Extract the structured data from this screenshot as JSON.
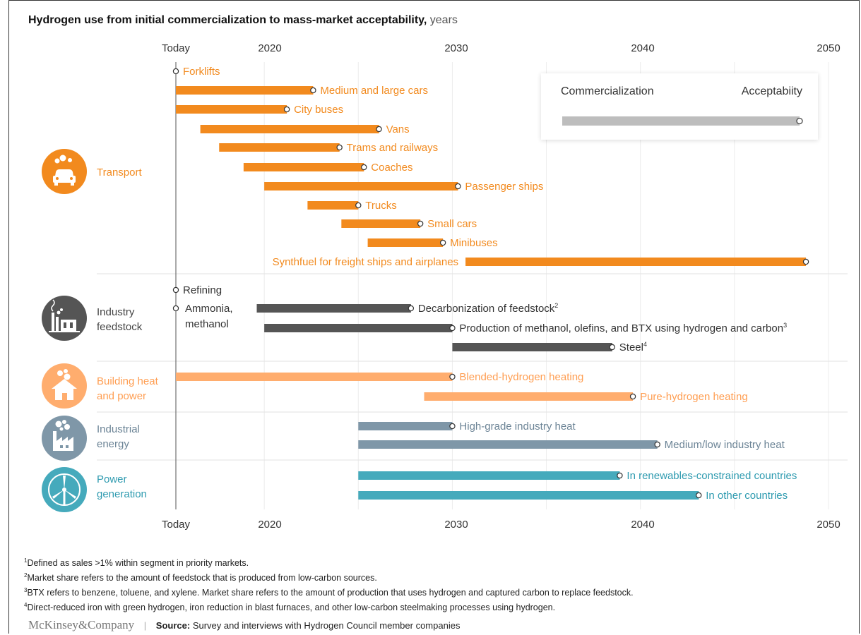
{
  "title": {
    "main": "Hydrogen use from initial commercialization to mass-market acceptability,",
    "unit": "years"
  },
  "axis": {
    "today_label": "Today",
    "ticks": [
      "2020",
      "2030",
      "2040",
      "2050"
    ]
  },
  "legend": {
    "start": "Commercialization",
    "end": "Acceptabiity"
  },
  "categories": [
    {
      "name": "Transport",
      "lines": [
        "Transport"
      ],
      "color": "#f28a1e",
      "icon": "car-icon"
    },
    {
      "name": "Industry feedstock",
      "lines": [
        "Industry",
        "feedstock"
      ],
      "color": "#555555",
      "icon": "factory-icon"
    },
    {
      "name": "Building heat and power",
      "lines": [
        "Building heat",
        "and power"
      ],
      "color": "#ffad6e",
      "icon": "house-icon"
    },
    {
      "name": "Industrial energy",
      "lines": [
        "Industrial",
        "energy"
      ],
      "color": "#7f97a8",
      "icon": "industry-icon"
    },
    {
      "name": "Power generation",
      "lines": [
        "Power",
        "generation"
      ],
      "color": "#45aabc",
      "icon": "wind-turbine-icon"
    }
  ],
  "chart_data": {
    "type": "bar",
    "subtype": "horizontal-range",
    "x_unit": "year",
    "xlim": [
      2015.3,
      2050
    ],
    "today": 2015.3,
    "series": [
      {
        "label": "Forklifts",
        "category": "Transport",
        "start": 2015.3,
        "end": 2015.3
      },
      {
        "label": "Medium and large cars",
        "category": "Transport",
        "start": 2015.3,
        "end": 2022.6
      },
      {
        "label": "City buses",
        "category": "Transport",
        "start": 2015.3,
        "end": 2021.2
      },
      {
        "label": "Vans",
        "category": "Transport",
        "start": 2016.6,
        "end": 2026.1
      },
      {
        "label": "Trams and railways",
        "category": "Transport",
        "start": 2017.6,
        "end": 2024.0
      },
      {
        "label": "Coaches",
        "category": "Transport",
        "start": 2018.9,
        "end": 2025.3
      },
      {
        "label": "Passenger ships",
        "category": "Transport",
        "start": 2020.0,
        "end": 2030.3
      },
      {
        "label": "Trucks",
        "category": "Transport",
        "start": 2022.3,
        "end": 2025.0
      },
      {
        "label": "Small cars",
        "category": "Transport",
        "start": 2024.1,
        "end": 2028.3
      },
      {
        "label": "Minibuses",
        "category": "Transport",
        "start": 2025.5,
        "end": 2029.5
      },
      {
        "label": "Synthfuel for freight ships and airplanes",
        "category": "Transport",
        "start": 2030.7,
        "end": 2048.8
      },
      {
        "label": "Refining",
        "category": "Industry feedstock",
        "start": 2015.3,
        "end": 2015.3
      },
      {
        "label": "Ammonia, methanol",
        "category": "Industry feedstock",
        "start": 2015.3,
        "end": 2015.3
      },
      {
        "label": "Decarbonization of feedstock",
        "note": "2",
        "category": "Industry feedstock",
        "start": 2019.6,
        "end": 2027.8
      },
      {
        "label": "Production of methanol, olefins, and BTX using hydrogen and carbon",
        "note": "3",
        "category": "Industry feedstock",
        "start": 2020.0,
        "end": 2030.0
      },
      {
        "label": "Steel",
        "note": "4",
        "category": "Industry feedstock",
        "start": 2030.0,
        "end": 2038.5
      },
      {
        "label": "Blended-hydrogen heating",
        "category": "Building heat and power",
        "start": 2015.3,
        "end": 2030.0
      },
      {
        "label": "Pure-hydrogen heating",
        "category": "Building heat and power",
        "start": 2028.5,
        "end": 2039.6
      },
      {
        "label": "High-grade industry heat",
        "category": "Industrial energy",
        "start": 2025.0,
        "end": 2030.0
      },
      {
        "label": "Medium/low industry heat",
        "category": "Industrial energy",
        "start": 2025.0,
        "end": 2040.9
      },
      {
        "label": "In renewables-constrained countries",
        "category": "Power generation",
        "start": 2025.0,
        "end": 2038.9
      },
      {
        "label": "In other countries",
        "category": "Power generation",
        "start": 2025.0,
        "end": 2043.1
      }
    ]
  },
  "footnotes": [
    {
      "num": "1",
      "text": "Defined as sales >1% within segment in priority markets."
    },
    {
      "num": "2",
      "text": "Market share refers to the amount of feedstock that is produced from low-carbon sources."
    },
    {
      "num": "3",
      "text": "BTX refers to benzene, toluene, and xylene. Market share refers to the amount of production that uses hydrogen and captured carbon to replace feedstock."
    },
    {
      "num": "4",
      "text": "Direct-reduced iron with green hydrogen, iron reduction in blast furnaces, and other low-carbon steelmaking processes using hydrogen."
    }
  ],
  "footer": {
    "brand": "McKinsey&Company",
    "source_label": "Source:",
    "source_text": "Survey and interviews with Hydrogen Council member companies"
  }
}
